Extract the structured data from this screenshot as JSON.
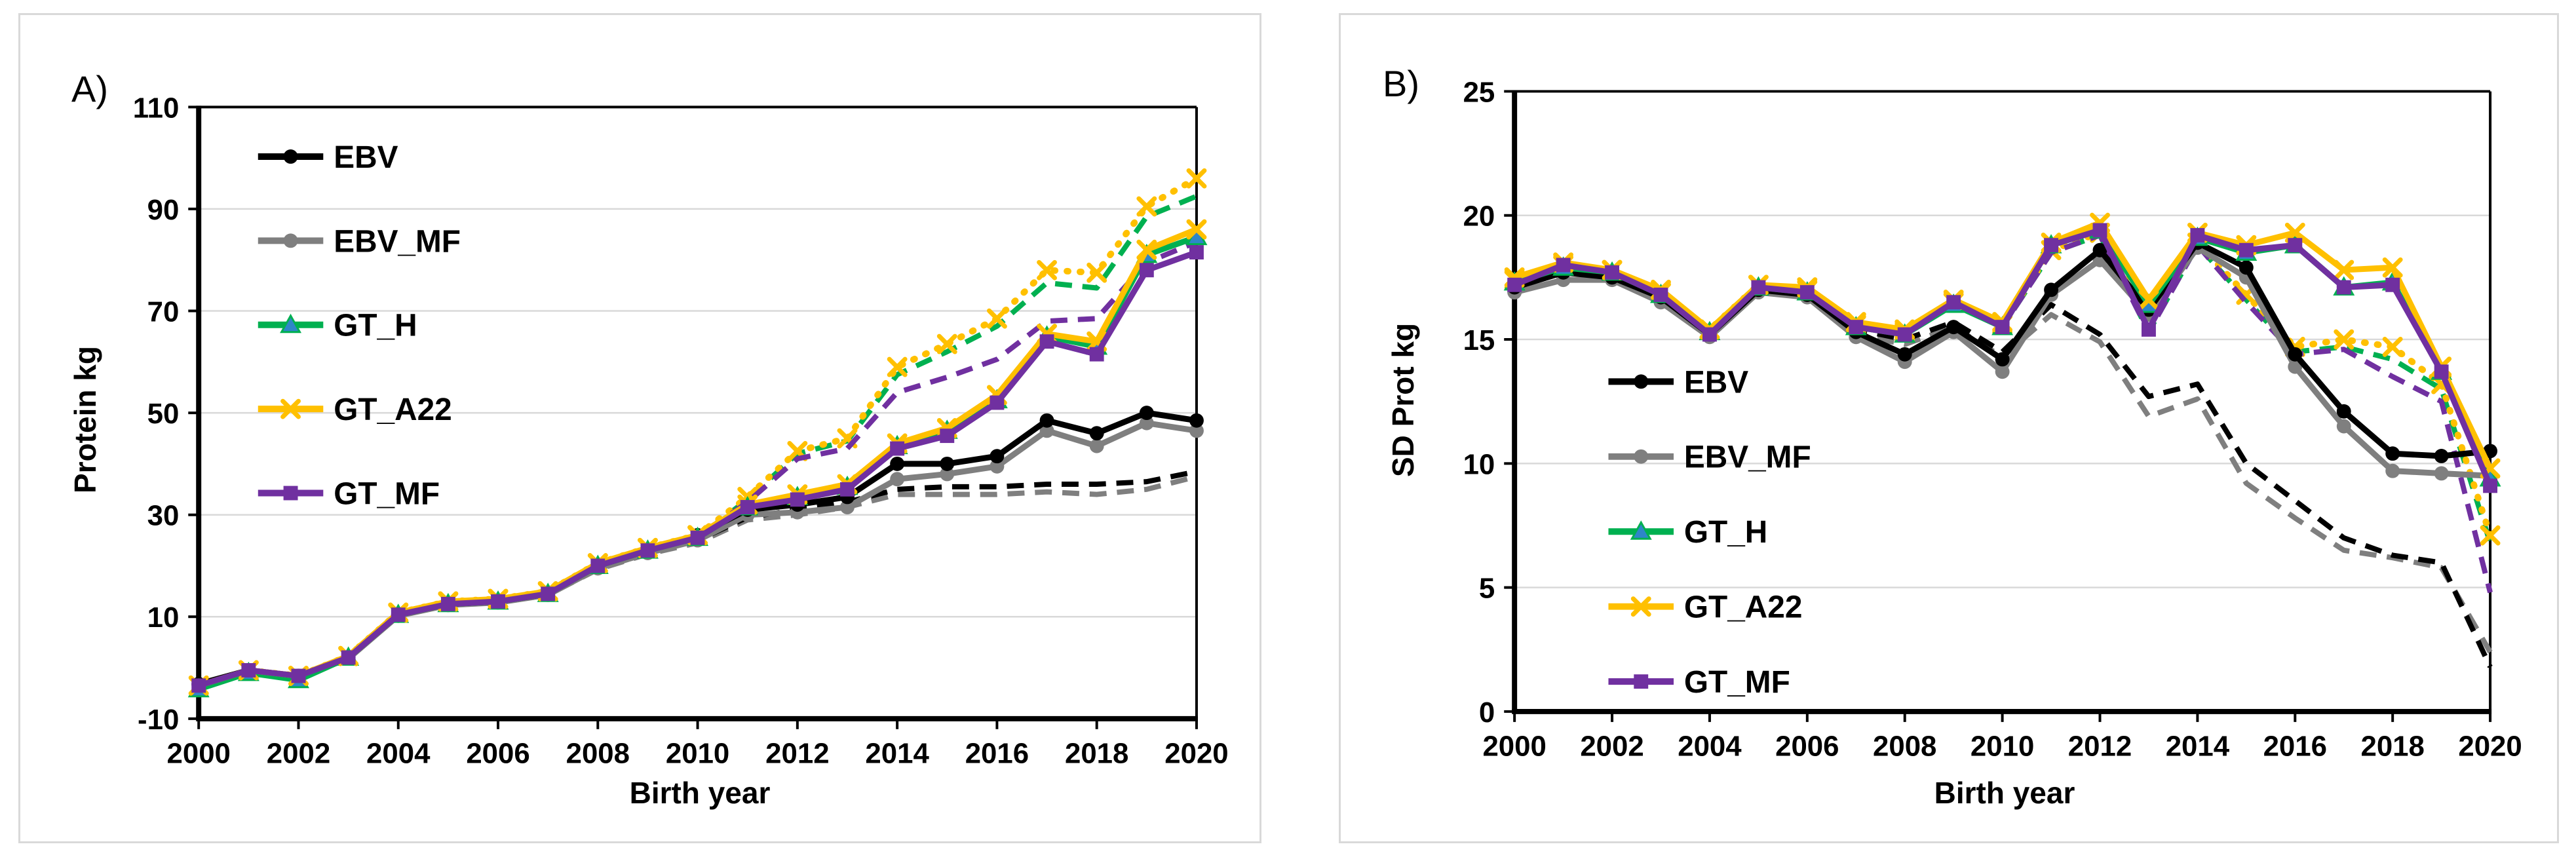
{
  "page": {
    "background": "#ffffff",
    "panel_border": "#d9d9d9",
    "gridline_color": "#d9d9d9"
  },
  "chart_data": [
    {
      "type": "line",
      "panel_label": "A)",
      "xlabel": "Birth year",
      "ylabel": "Protein kg",
      "x": [
        2000,
        2001,
        2002,
        2003,
        2004,
        2005,
        2006,
        2007,
        2008,
        2009,
        2010,
        2011,
        2012,
        2013,
        2014,
        2015,
        2016,
        2017,
        2018,
        2019,
        2020
      ],
      "xlim": [
        2000,
        2020
      ],
      "ylim": [
        -10,
        110
      ],
      "x_ticks": [
        2000,
        2002,
        2004,
        2006,
        2008,
        2010,
        2012,
        2014,
        2016,
        2018,
        2020
      ],
      "y_ticks": [
        110,
        90,
        70,
        50,
        30,
        10,
        -10
      ],
      "gridlines": [
        90,
        70,
        50,
        30,
        10
      ],
      "grid": "horizontal",
      "legend": [
        "EBV",
        "EBV_MF",
        "GT_H",
        "GT_A22",
        "GT_MF"
      ],
      "legend_location": "upper-left-inside",
      "series": [
        {
          "name": "EBV_MF",
          "variant": "dashed",
          "color": "#7f7f7f",
          "dash": "dash",
          "marker": "none",
          "values": [
            -3.4,
            -0.8,
            -1.9,
            1.8,
            10.2,
            12.3,
            12.8,
            14.3,
            19.3,
            22.3,
            24.5,
            29,
            30,
            31.5,
            34,
            34,
            34,
            34.5,
            34,
            35,
            37.5
          ]
        },
        {
          "name": "EBV",
          "variant": "dashed",
          "color": "#000000",
          "dash": "dash",
          "marker": "none",
          "values": [
            -3.2,
            -0.5,
            -1.6,
            2,
            10.4,
            12.5,
            13,
            14.5,
            19.5,
            22.5,
            25,
            29.5,
            31,
            32.5,
            35,
            35.5,
            35.5,
            36,
            36,
            36.5,
            38.5
          ]
        },
        {
          "name": "GT_H",
          "variant": "dashed",
          "color": "#00B050",
          "dash": "dash",
          "marker": "none",
          "values": [
            -4.2,
            -1,
            -2.4,
            2,
            10.4,
            12.5,
            13,
            14.5,
            20,
            23,
            25.5,
            33,
            42,
            44.5,
            57.5,
            62,
            67,
            75.5,
            74.5,
            88.5,
            92.5
          ]
        },
        {
          "name": "GT_A22",
          "variant": "dashed",
          "color": "#FFC000",
          "dash": "dot",
          "marker": "x",
          "values": [
            -3.5,
            -0.5,
            -1.6,
            2.3,
            10.8,
            13,
            13.5,
            15,
            20.5,
            23.5,
            26,
            33.5,
            42.5,
            45,
            59,
            63.5,
            68.5,
            78,
            77.5,
            90.5,
            96
          ]
        },
        {
          "name": "GT_MF",
          "variant": "dashed",
          "color": "#7030A0",
          "dash": "dash",
          "marker": "none",
          "values": [
            -3.5,
            -0.5,
            -1.6,
            2,
            10.4,
            12.5,
            13,
            14.5,
            20,
            23,
            25.5,
            32.5,
            41,
            43,
            54,
            57,
            60.5,
            68,
            68.5,
            79.5,
            83.5
          ]
        },
        {
          "name": "EBV_MF",
          "variant": "solid",
          "color": "#7f7f7f",
          "dash": "solid",
          "marker": "circle",
          "values": [
            -3.4,
            -0.8,
            -1.9,
            1.8,
            10.2,
            12.3,
            12.8,
            14.3,
            19.5,
            22.5,
            25,
            30,
            30.5,
            31.5,
            37,
            38,
            39.5,
            46.5,
            43.5,
            48,
            46.5
          ]
        },
        {
          "name": "EBV",
          "variant": "solid",
          "color": "#000000",
          "dash": "solid",
          "marker": "circle",
          "values": [
            -3.2,
            -0.5,
            -1.6,
            2,
            10.4,
            12.5,
            13,
            14.5,
            20,
            23,
            26,
            31,
            32,
            33.5,
            40,
            40,
            41.5,
            48.5,
            46,
            50,
            48.5
          ]
        },
        {
          "name": "GT_H",
          "variant": "solid",
          "color": "#00B050",
          "dash": "solid",
          "marker": "triangle",
          "marker_fill": "#2E86C8",
          "marker_stroke": "#00B050",
          "values": [
            -4.2,
            -1,
            -2.4,
            2,
            10.4,
            12.5,
            13,
            14.5,
            20,
            23,
            25.5,
            31.5,
            33.5,
            35.5,
            43.5,
            46.5,
            52.5,
            65,
            63,
            81,
            84.5
          ]
        },
        {
          "name": "GT_A22",
          "variant": "solid",
          "color": "#FFC000",
          "dash": "solid",
          "marker": "x",
          "values": [
            -3.5,
            -0.5,
            -1.6,
            2.3,
            10.8,
            13,
            13.5,
            15,
            20.5,
            23.5,
            26,
            32,
            34,
            36,
            44,
            47,
            53.5,
            65.5,
            64,
            82,
            86
          ]
        },
        {
          "name": "GT_MF",
          "variant": "solid",
          "color": "#7030A0",
          "dash": "solid",
          "marker": "square",
          "values": [
            -3.5,
            -0.5,
            -1.6,
            2,
            10.4,
            12.5,
            13,
            14.5,
            20,
            23,
            25.5,
            31.5,
            33,
            35,
            43,
            45.5,
            52,
            64,
            61.5,
            78,
            81.5
          ]
        }
      ]
    },
    {
      "type": "line",
      "panel_label": "B)",
      "xlabel": "Birth year",
      "ylabel": "SD Prot kg",
      "x": [
        2000,
        2001,
        2002,
        2003,
        2004,
        2005,
        2006,
        2007,
        2008,
        2009,
        2010,
        2011,
        2012,
        2013,
        2014,
        2015,
        2016,
        2017,
        2018,
        2019,
        2020
      ],
      "xlim": [
        2000,
        2020
      ],
      "ylim": [
        0,
        25
      ],
      "x_ticks": [
        2000,
        2002,
        2004,
        2006,
        2008,
        2010,
        2012,
        2014,
        2016,
        2018,
        2020
      ],
      "y_ticks": [
        25,
        20,
        15,
        10,
        5,
        0
      ],
      "gridlines": [
        20,
        15,
        10,
        5
      ],
      "grid": "horizontal",
      "legend": [
        "EBV",
        "EBV_MF",
        "GT_H",
        "GT_A22",
        "GT_MF"
      ],
      "legend_location": "center-left-inside",
      "series": [
        {
          "name": "EBV_MF",
          "variant": "dashed",
          "color": "#7f7f7f",
          "dash": "dash",
          "marker": "none",
          "values": [
            16.9,
            17.4,
            17.4,
            16.5,
            15.1,
            16.9,
            16.7,
            15.2,
            14.8,
            15.5,
            14.3,
            16.0,
            14.9,
            11.9,
            12.6,
            9.2,
            7.8,
            6.5,
            6.2,
            5.8,
            2.4
          ]
        },
        {
          "name": "EBV",
          "variant": "dashed",
          "color": "#000000",
          "dash": "dash",
          "marker": "none",
          "values": [
            17.1,
            17.7,
            17.5,
            16.7,
            15.2,
            17.0,
            16.8,
            15.4,
            15.0,
            15.7,
            14.5,
            16.4,
            15.2,
            12.7,
            13.2,
            10.0,
            8.5,
            7.0,
            6.3,
            6.0,
            1.8
          ]
        },
        {
          "name": "GT_H",
          "variant": "dashed",
          "color": "#00B050",
          "dash": "dash",
          "marker": "none",
          "values": [
            17.3,
            17.9,
            17.7,
            16.8,
            15.3,
            17.1,
            16.9,
            15.5,
            15.2,
            16.4,
            15.5,
            18.5,
            19.2,
            15.3,
            18.8,
            16.6,
            14.5,
            14.7,
            14.2,
            13.0,
            6.8
          ]
        },
        {
          "name": "GT_A22",
          "variant": "dashed",
          "color": "#FFC000",
          "dash": "dot",
          "marker": "x",
          "values": [
            17.4,
            18.0,
            17.8,
            16.9,
            15.4,
            17.2,
            17.0,
            15.6,
            15.3,
            16.5,
            15.6,
            18.6,
            19.3,
            16.4,
            18.9,
            16.8,
            14.7,
            15.0,
            14.7,
            13.2,
            7.1
          ]
        },
        {
          "name": "GT_MF",
          "variant": "dashed",
          "color": "#7030A0",
          "dash": "dash",
          "marker": "none",
          "values": [
            17.2,
            17.9,
            17.7,
            16.8,
            15.2,
            17.1,
            16.9,
            15.5,
            15.2,
            16.4,
            15.5,
            18.5,
            19.2,
            15.3,
            18.8,
            16.5,
            14.4,
            14.6,
            13.5,
            12.5,
            4.8
          ]
        },
        {
          "name": "EBV_MF",
          "variant": "solid",
          "color": "#7f7f7f",
          "dash": "solid",
          "marker": "circle",
          "values": [
            16.9,
            17.4,
            17.4,
            16.5,
            15.1,
            16.9,
            16.7,
            15.1,
            14.1,
            15.3,
            13.7,
            16.8,
            18.2,
            16.0,
            18.7,
            17.5,
            13.9,
            11.5,
            9.7,
            9.6,
            9.5
          ]
        },
        {
          "name": "EBV",
          "variant": "solid",
          "color": "#000000",
          "dash": "solid",
          "marker": "circle",
          "values": [
            17.1,
            17.7,
            17.5,
            16.7,
            15.2,
            17.0,
            16.8,
            15.3,
            14.4,
            15.5,
            14.2,
            17.0,
            18.6,
            16.2,
            18.9,
            17.9,
            14.4,
            12.1,
            10.4,
            10.3,
            10.5
          ]
        },
        {
          "name": "GT_H",
          "variant": "solid",
          "color": "#00B050",
          "dash": "solid",
          "marker": "triangle",
          "marker_fill": "#2E86C8",
          "marker_stroke": "#00B050",
          "values": [
            17.3,
            17.9,
            17.7,
            16.8,
            15.3,
            17.1,
            16.9,
            15.5,
            15.2,
            16.4,
            15.5,
            18.8,
            19.4,
            16.4,
            19.1,
            18.5,
            18.8,
            17.1,
            17.3,
            13.7,
            9.4
          ]
        },
        {
          "name": "GT_A22",
          "variant": "solid",
          "color": "#FFC000",
          "dash": "solid",
          "marker": "x",
          "values": [
            17.5,
            18.1,
            17.8,
            17.0,
            15.4,
            17.2,
            17.1,
            15.7,
            15.4,
            16.6,
            15.7,
            18.9,
            19.7,
            16.6,
            19.3,
            18.8,
            19.3,
            17.8,
            17.9,
            13.9,
            9.8
          ]
        },
        {
          "name": "GT_MF",
          "variant": "solid",
          "color": "#7030A0",
          "dash": "solid",
          "marker": "square",
          "values": [
            17.2,
            18.0,
            17.7,
            16.8,
            15.2,
            17.1,
            16.9,
            15.5,
            15.2,
            16.5,
            15.5,
            18.8,
            19.4,
            15.4,
            19.2,
            18.6,
            18.8,
            17.1,
            17.2,
            13.7,
            9.1
          ]
        }
      ]
    }
  ]
}
